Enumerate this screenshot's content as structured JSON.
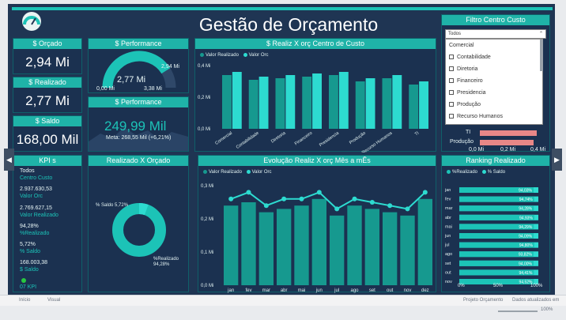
{
  "header": {
    "title": "Gestão de Orçamento"
  },
  "filter": {
    "title": "Filtro Centro Custo",
    "selected": "Todos",
    "options": [
      "Comercial",
      "Contabilidade",
      "Diretoria",
      "Financeiro",
      "Presidencia",
      "Produção",
      "Recurso Humanos"
    ],
    "behind_labels": [
      "TI",
      "Produção"
    ],
    "behind_axis": [
      "0,0 Mi",
      "0,2 Mi",
      "0,4 Mi"
    ]
  },
  "cards": {
    "orcado": {
      "title": "$ Orçado",
      "value": "2,94 Mi"
    },
    "realizado": {
      "title": "$ Realizado",
      "value": "2,77 Mi"
    },
    "saldo": {
      "title": "$ Saldo",
      "value": "168,00 Mil"
    }
  },
  "performance_gauge": {
    "title": "$ Performance",
    "value": "2,77 Mi",
    "min": "0,00 Mi",
    "max": "3,38 Mi",
    "target": "2,94 Mi",
    "fill": 0.82
  },
  "performance_kpi": {
    "title": "$ Performance",
    "value": "249,99 Mil",
    "meta": "Meta: 268,55 Mil (+6,21%)"
  },
  "kpis": {
    "title": "KPI s",
    "items": [
      "Todos",
      "Centro Custo",
      "2.937.630,53",
      "Valor Orc",
      "2.769.627,15",
      "Valor Realizado",
      "94,28%",
      "%Realizado",
      "5,72%",
      "% Saldo",
      "168.003,38",
      "$ Saldo",
      "07 KPI"
    ]
  },
  "donut": {
    "title": "Realizado X Orçado",
    "label_saldo": "% Saldo 5,72%",
    "label_realizado": "%Realizado",
    "label_realizado_value": "94,28%"
  },
  "chart_centro": {
    "title": "$ Realiz X orç Centro de Custo",
    "legend": [
      "Valor Realizado",
      "Valor Orc"
    ]
  },
  "chart_mes": {
    "title": "Evolução Realiz X orç Mês a mÊs",
    "legend": [
      "Valor Realizado",
      "Valor Orc"
    ]
  },
  "ranking": {
    "title": "Ranking Realizado",
    "legend": [
      "%Realizado",
      "% Saldo"
    ],
    "axis": [
      "0%",
      "50%",
      "100%"
    ]
  },
  "statusbar": {
    "left1": "Início",
    "left2": "Visual",
    "right1": "Projeto Orçamento",
    "right2": "Dados atualizados em",
    "zoom": "100%"
  },
  "colors": {
    "teal": "#1cc3b7",
    "bar_dark": "#16998f",
    "bar_light": "#2ddbd0",
    "bg": "#1f3553",
    "pink": "#e88787"
  },
  "chart_data": [
    {
      "type": "bar",
      "title": "$ Realiz X orç Centro de Custo",
      "categories": [
        "Comercial",
        "Contabilidade",
        "Diretoria",
        "Financeiro",
        "Presidencia",
        "Produção",
        "Recurso Humanos",
        "TI"
      ],
      "series": [
        {
          "name": "Valor Realizado",
          "values": [
            0.34,
            0.31,
            0.32,
            0.33,
            0.34,
            0.3,
            0.32,
            0.28
          ]
        },
        {
          "name": "Valor Orc",
          "values": [
            0.36,
            0.33,
            0.34,
            0.35,
            0.36,
            0.32,
            0.34,
            0.3
          ]
        }
      ],
      "yticks": [
        "0,0 Mi",
        "0,2 Mi",
        "0,4 Mi"
      ],
      "ylim": [
        0,
        0.42
      ]
    },
    {
      "type": "bar",
      "title": "Evolução Realiz X orç Mês a mÊs",
      "categories": [
        "jan",
        "fev",
        "mar",
        "abr",
        "mai",
        "jun",
        "jul",
        "ago",
        "set",
        "out",
        "nov",
        "dez"
      ],
      "series": [
        {
          "name": "Valor Realizado",
          "values": [
            0.24,
            0.25,
            0.22,
            0.23,
            0.24,
            0.26,
            0.21,
            0.24,
            0.23,
            0.22,
            0.21,
            0.26
          ]
        },
        {
          "name": "Valor Orc",
          "values": [
            0.26,
            0.28,
            0.24,
            0.26,
            0.26,
            0.28,
            0.23,
            0.26,
            0.25,
            0.24,
            0.23,
            0.28
          ]
        }
      ],
      "yticks": [
        "0,0 Mi",
        "0,1 Mi",
        "0,2 Mi",
        "0,3 Mi"
      ],
      "ylim": [
        0,
        0.3
      ]
    },
    {
      "type": "bar",
      "title": "Ranking Realizado",
      "categories": [
        "jan",
        "fev",
        "mar",
        "abr",
        "mai",
        "jun",
        "jul",
        "ago",
        "set",
        "out",
        "nov"
      ],
      "series": [
        {
          "name": "%Realizado",
          "labels": [
            "94,03%",
            "94,74%",
            "94,28%",
            "94,93%",
            "94,29%",
            "94,09%",
            "94,80%",
            "93,82%",
            "94,00%",
            "94,41%",
            "94,52%"
          ],
          "values": [
            94.03,
            94.74,
            94.28,
            94.93,
            94.29,
            94.09,
            94.8,
            93.82,
            94.0,
            94.41,
            94.52
          ]
        }
      ]
    }
  ]
}
